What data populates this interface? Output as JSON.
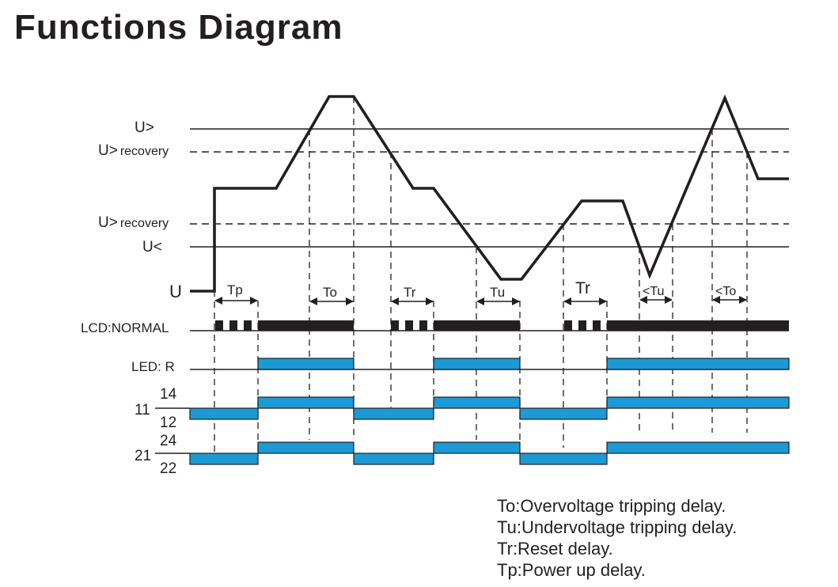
{
  "title": "Functions Diagram",
  "colors": {
    "ink": "#231f20",
    "relay": "#1b9ad6"
  },
  "levels": {
    "u_over": "U>",
    "u_over_recovery_prefix": "U>",
    "u_over_recovery_suffix": "recovery",
    "u_under_recovery_prefix": "U>",
    "u_under_recovery_suffix": "recovery",
    "u_under": "U<",
    "u": "U"
  },
  "rows": {
    "lcd": "LCD:NORMAL",
    "led": "LED: R",
    "relay1_common": "11",
    "relay1_no": "14",
    "relay1_nc": "12",
    "relay2_common": "21",
    "relay2_no": "24",
    "relay2_nc": "22"
  },
  "delays": {
    "tp": "Tp",
    "to": "To",
    "tr1": "Tr",
    "tu": "Tu",
    "tr2": "Tr",
    "tu_short": "<Tu",
    "to_short": "<To"
  },
  "legend": [
    "To:Overvoltage tripping delay.",
    "Tu:Undervoltage tripping delay.",
    "Tr:Reset delay.",
    "Tp:Power up delay."
  ]
}
